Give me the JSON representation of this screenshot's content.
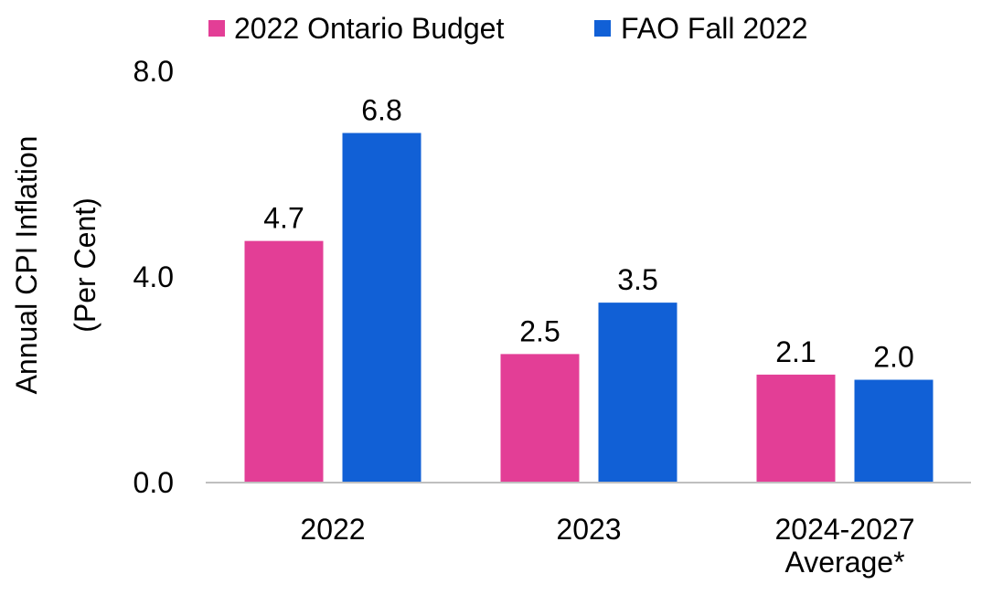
{
  "chart_data": {
    "type": "bar",
    "title": "",
    "xlabel": "",
    "ylabel_lines": [
      "Annual CPI Inflation",
      "(Per Cent)"
    ],
    "categories": [
      [
        "2022"
      ],
      [
        "2023"
      ],
      [
        "2024-2027",
        "Average*"
      ]
    ],
    "series": [
      {
        "name": "2022 Ontario Budget",
        "color": "#E33E96",
        "values": [
          4.7,
          2.5,
          2.1
        ],
        "labels": [
          "4.7",
          "2.5",
          "2.1"
        ]
      },
      {
        "name": "FAO Fall 2022",
        "color": "#1160D6",
        "values": [
          6.8,
          3.5,
          2.0
        ],
        "labels": [
          "6.8",
          "3.5",
          "2.0"
        ]
      }
    ],
    "ylim": [
      0,
      8
    ],
    "yticks": [
      0,
      4,
      8
    ],
    "ytick_labels": [
      "0.0",
      "4.0",
      "8.0"
    ],
    "grid": false,
    "legend_position": "top"
  }
}
